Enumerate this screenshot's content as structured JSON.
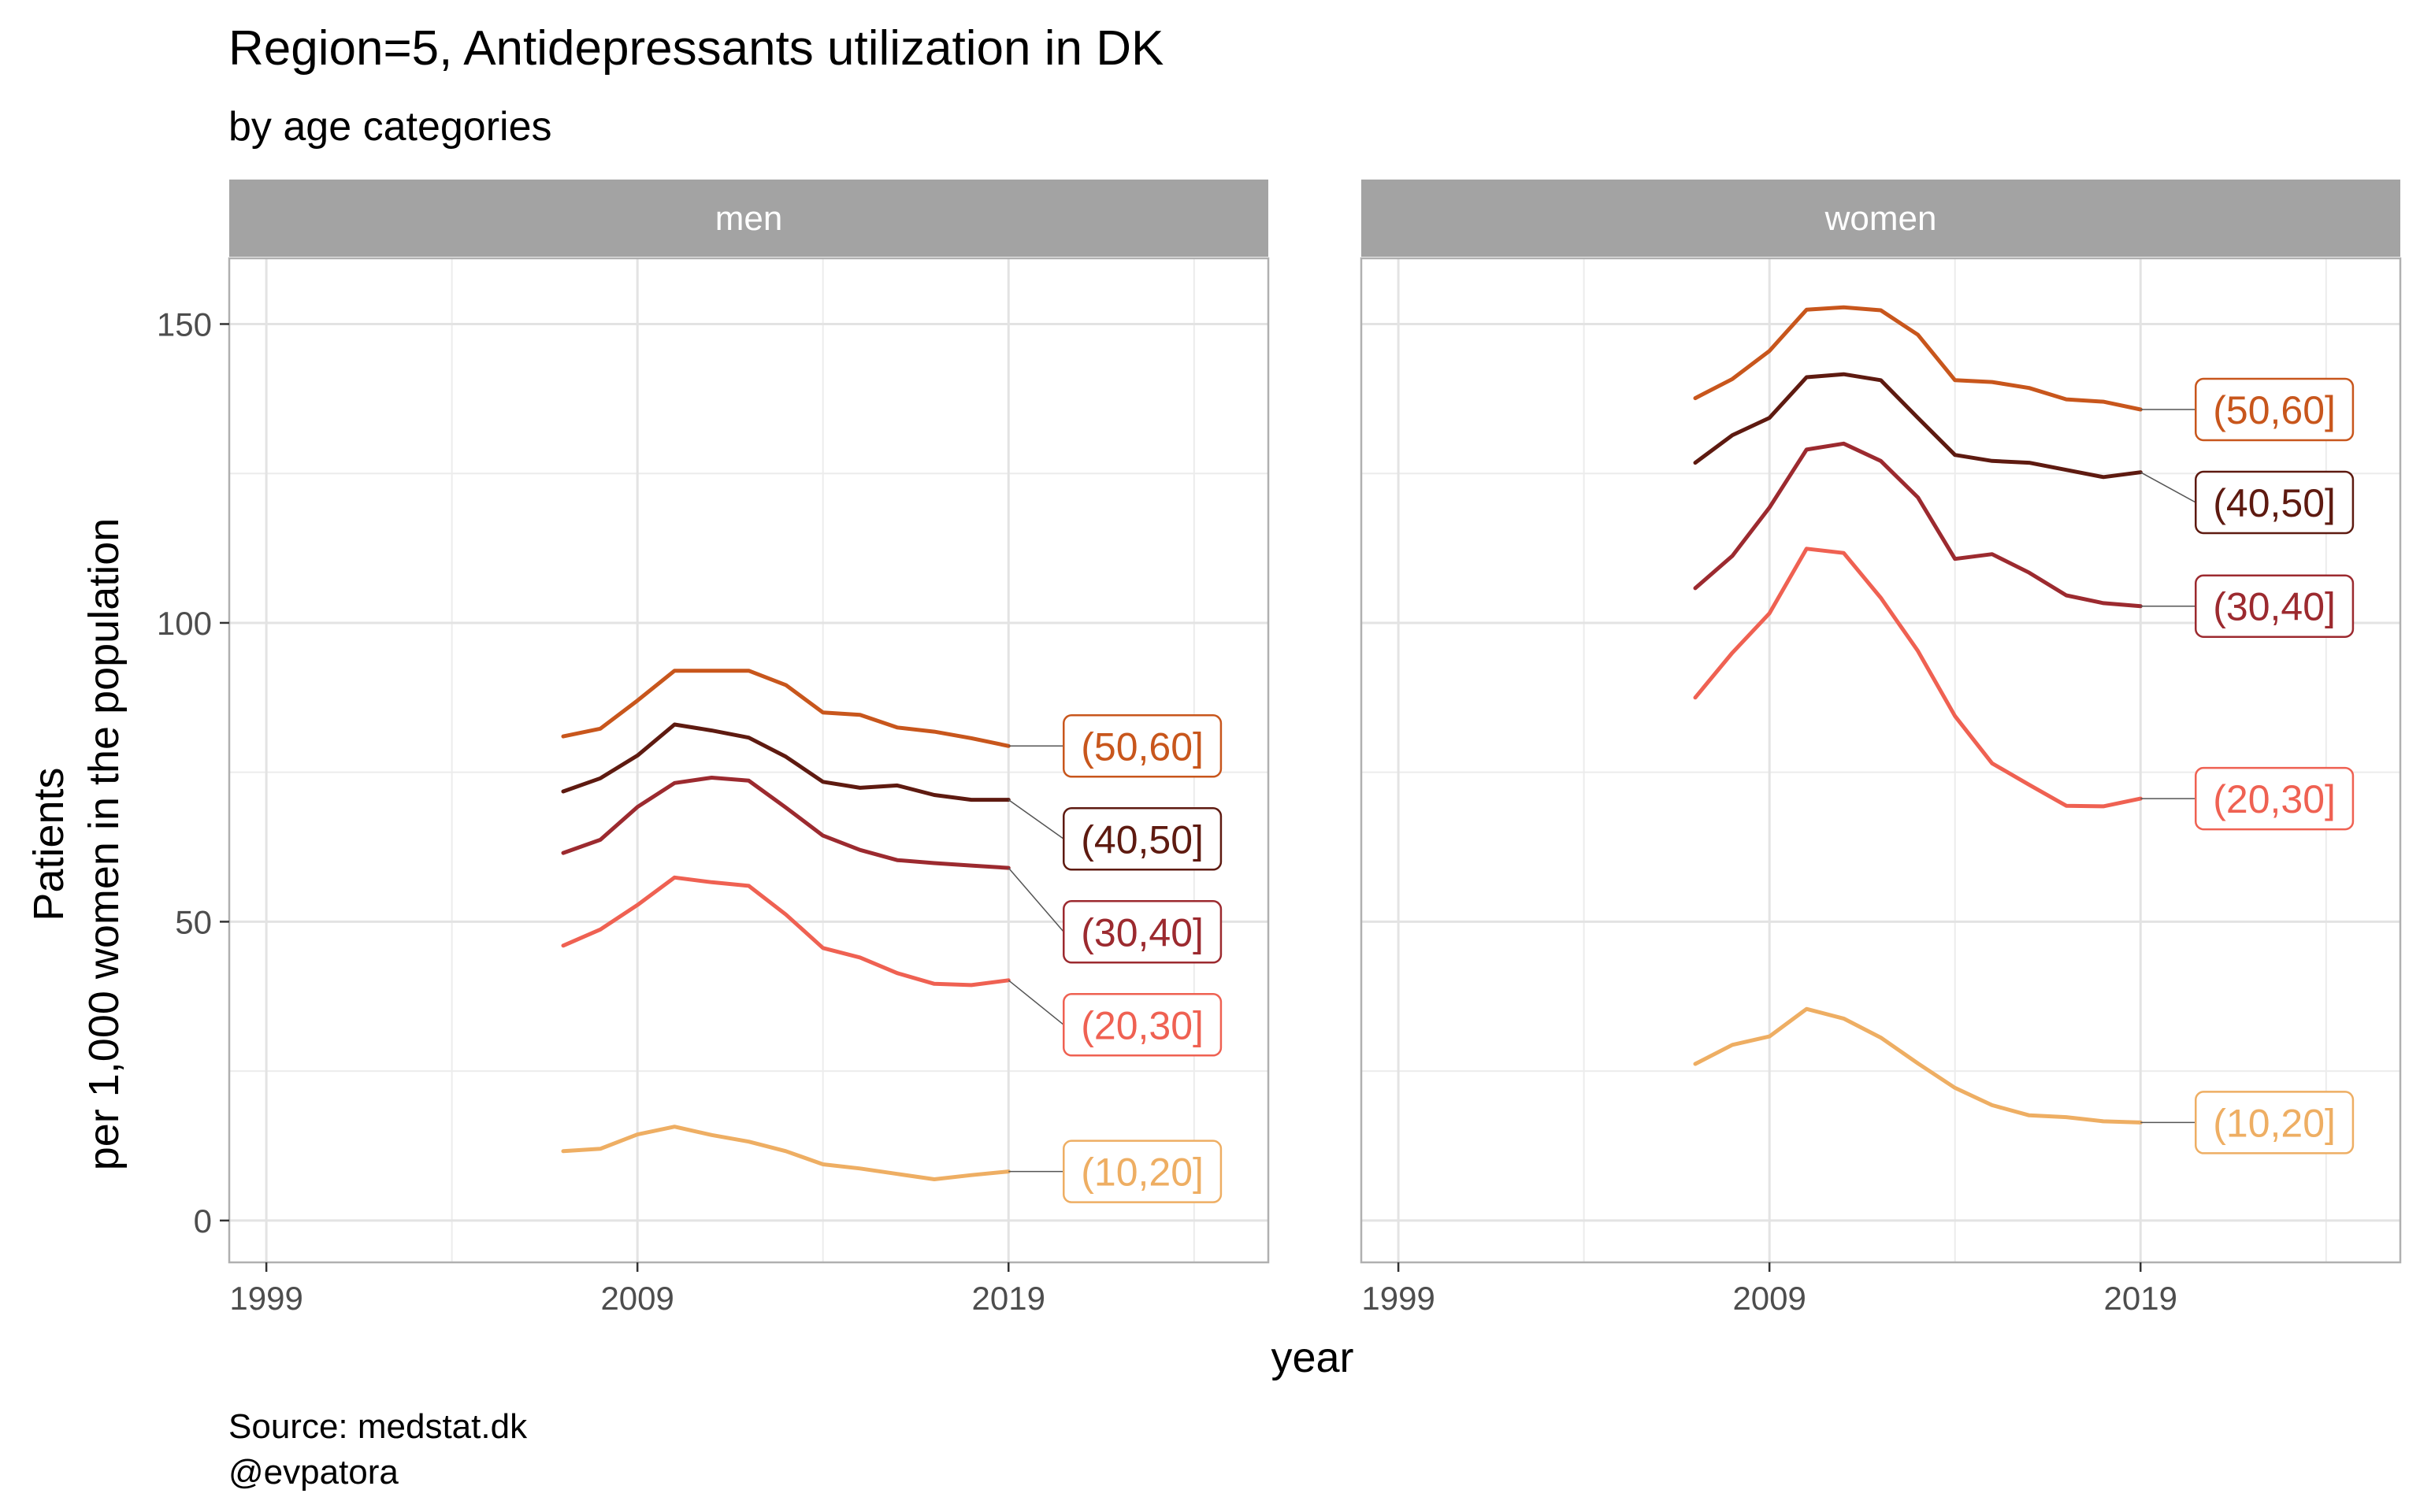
{
  "title": "Region=5, Antidepressants utilization in DK",
  "subtitle": "by age categories",
  "caption_line1": "Source: medstat.dk",
  "caption_line2": "@evpatora",
  "chart_data": {
    "type": "line",
    "facets": [
      "men",
      "women"
    ],
    "xlabel": "year",
    "ylabel_line1": "Patients",
    "ylabel_line2": "per 1,000 women in the population",
    "xlim": [
      1998,
      2026
    ],
    "ylim": [
      -7,
      161
    ],
    "x_ticks": [
      1999,
      2009,
      2019
    ],
    "y_ticks": [
      0,
      50,
      100,
      150
    ],
    "x": [
      2007,
      2008,
      2009,
      2010,
      2011,
      2012,
      2013,
      2014,
      2015,
      2016,
      2017,
      2018,
      2019
    ],
    "panels": [
      {
        "facet": "men",
        "series": [
          {
            "name": "(50,60]",
            "color": "#c8561c",
            "values": [
              81.0,
              82.3,
              87.0,
              92.0,
              92.0,
              92.0,
              89.6,
              85.0,
              84.6,
              82.5,
              81.8,
              80.7,
              79.4
            ]
          },
          {
            "name": "(40,50]",
            "color": "#5e1a10",
            "values": [
              71.8,
              74.0,
              77.8,
              83.0,
              82.0,
              80.8,
              77.6,
              73.4,
              72.4,
              72.8,
              71.2,
              70.4,
              70.4
            ]
          },
          {
            "name": "(30,40]",
            "color": "#9c2a2f",
            "values": [
              61.5,
              63.7,
              69.2,
              73.2,
              74.1,
              73.6,
              69.1,
              64.4,
              62.0,
              60.3,
              59.8,
              59.4,
              59.0
            ]
          },
          {
            "name": "(20,30]",
            "color": "#ef6152",
            "values": [
              46.0,
              48.7,
              52.8,
              57.4,
              56.6,
              56.0,
              51.2,
              45.6,
              44.0,
              41.4,
              39.6,
              39.4,
              40.2
            ]
          },
          {
            "name": "(10,20]",
            "color": "#eeae63",
            "values": [
              11.6,
              12.0,
              14.4,
              15.7,
              14.3,
              13.2,
              11.6,
              9.4,
              8.7,
              7.8,
              6.9,
              7.6,
              8.2
            ]
          }
        ]
      },
      {
        "facet": "women",
        "series": [
          {
            "name": "(50,60]",
            "color": "#c8561c",
            "values": [
              137.6,
              140.8,
              145.5,
              152.4,
              152.8,
              152.3,
              148.2,
              140.6,
              140.3,
              139.3,
              137.4,
              137.0,
              135.7
            ]
          },
          {
            "name": "(40,50]",
            "color": "#5e1a10",
            "values": [
              126.8,
              131.4,
              134.3,
              141.1,
              141.6,
              140.6,
              134.3,
              128.1,
              127.1,
              126.8,
              125.6,
              124.4,
              125.2
            ]
          },
          {
            "name": "(30,40]",
            "color": "#9c2a2f",
            "values": [
              105.8,
              111.2,
              119.3,
              129.0,
              130.0,
              127.1,
              121.0,
              110.7,
              111.5,
              108.4,
              104.6,
              103.3,
              102.8
            ]
          },
          {
            "name": "(20,30]",
            "color": "#ef6152",
            "values": [
              87.5,
              95.0,
              101.6,
              112.4,
              111.7,
              104.2,
              95.3,
              84.4,
              76.5,
              72.9,
              69.4,
              69.3,
              70.6
            ]
          },
          {
            "name": "(10,20]",
            "color": "#eeae63",
            "values": [
              26.2,
              29.4,
              30.8,
              35.4,
              33.8,
              30.6,
              26.3,
              22.2,
              19.3,
              17.6,
              17.3,
              16.6,
              16.4
            ]
          }
        ]
      }
    ],
    "label_order": [
      "(50,60]",
      "(40,50]",
      "(30,40]",
      "(20,30]",
      "(10,20]"
    ],
    "grid": true,
    "strip_color": "#a3a3a3",
    "panel_border_color": "#b0b0b0",
    "grid_color": "#e3e3e3"
  }
}
